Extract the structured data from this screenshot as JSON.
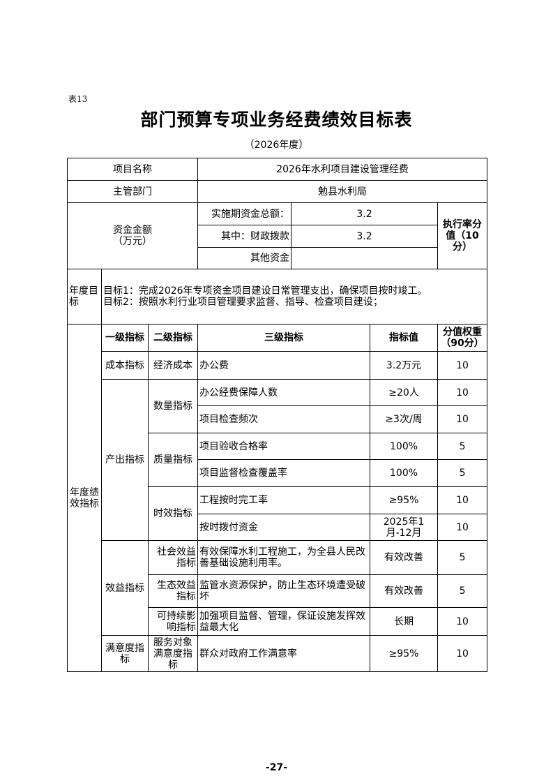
{
  "header": {
    "tag": "表13",
    "title": "部门预算专项业务经费绩效目标表",
    "year": "（2026年度）"
  },
  "info": {
    "project_name_label": "项目名称",
    "project_name": "2026年水利项目建设管理经费",
    "dept_label": "主管部门",
    "dept": "勉县水利局",
    "funds_label": "资金金额\n（万元）",
    "total_label": "实施期资金总额：",
    "total": "3.2",
    "fiscal_label": "其中：财政拨款",
    "fiscal": "3.2",
    "other_label": "其他资金",
    "other": "",
    "exec_label": "执行率分值（10分）"
  },
  "goals": {
    "label": "年度目标",
    "line1": "目标1：完成2026年专项资金项目建设日常管理支出，确保项目按时竣工。",
    "line2": "目标2：按照水利行业项目管理要求监督、指导、检查项目建设；"
  },
  "indicators": {
    "label": "年度绩效指标",
    "headers": [
      "一级指标",
      "二级指标",
      "三级指标",
      "指标值",
      "分值权重（90分）"
    ],
    "l1": [
      "成本指标",
      "产出指标",
      "效益指标",
      "满意度指标"
    ],
    "l2": [
      "经济成本",
      "数量指标",
      "质量指标",
      "时效指标",
      "社会效益指标",
      "生态效益指标",
      "可持续影响指标",
      "服务对象满意度指标"
    ],
    "rows": [
      {
        "name": "办公费",
        "value": "3.2万元",
        "score": "10"
      },
      {
        "name": "办公经费保障人数",
        "value": "≥20人",
        "score": "10"
      },
      {
        "name": "项目检查频次",
        "value": "≥3次/周",
        "score": "10"
      },
      {
        "name": "项目验收合格率",
        "value": "100%",
        "score": "5"
      },
      {
        "name": "项目监督检查覆盖率",
        "value": "100%",
        "score": "5"
      },
      {
        "name": "工程按时完工率",
        "value": "≥95%",
        "score": "10"
      },
      {
        "name": "按时拨付资金",
        "value": "2025年1月-12月",
        "score": "10"
      },
      {
        "name": "有效保障水利工程施工，为全县人民改善基础设施利用率。",
        "value": "有效改善",
        "score": "5"
      },
      {
        "name": "监管水资源保护，防止生态环境遭受破坏",
        "value": "有效改善",
        "score": "5"
      },
      {
        "name": "加强项目监督、管理，保证设施发挥效益最大化",
        "value": "长期",
        "score": "10"
      },
      {
        "name": "群众对政府工作满意率",
        "value": "≥95%",
        "score": "10"
      }
    ]
  },
  "footer": {
    "page": "-27-"
  }
}
